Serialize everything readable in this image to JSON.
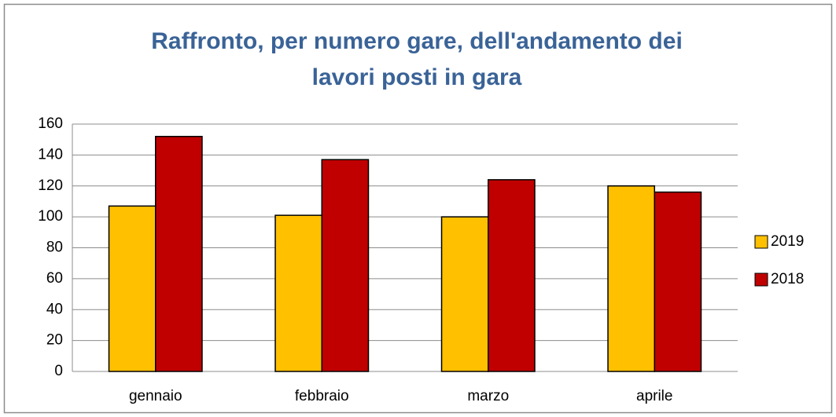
{
  "chart_data": {
    "type": "bar",
    "title": "Raffronto, per numero gare, dell'andamento dei lavori posti in gara",
    "categories": [
      "gennaio",
      "febbraio",
      "marzo",
      "aprile"
    ],
    "series": [
      {
        "name": "2019",
        "color": "#FFC000",
        "values": [
          107,
          101,
          100,
          120
        ]
      },
      {
        "name": "2018",
        "color": "#C00000",
        "values": [
          152,
          137,
          124,
          116
        ]
      }
    ],
    "ylim": [
      0,
      160
    ],
    "yticks": [
      0,
      20,
      40,
      60,
      80,
      100,
      120,
      140,
      160
    ],
    "grid": true,
    "legend": "right"
  }
}
